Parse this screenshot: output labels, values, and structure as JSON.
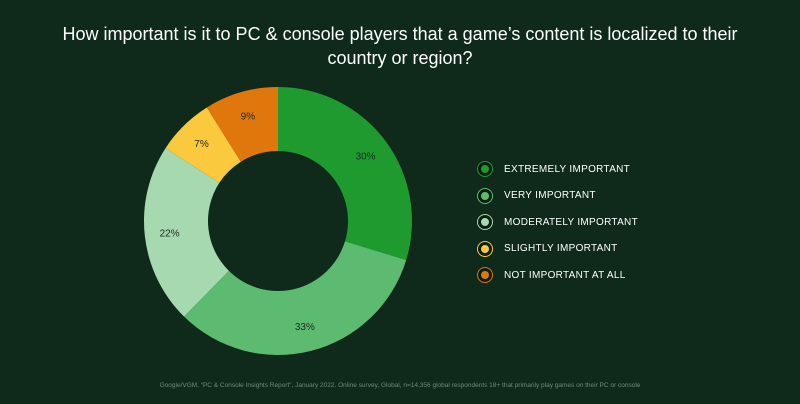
{
  "chart_data": {
    "type": "pie",
    "title": "How important is it to PC & console players that a game’s content is localized to their country or region?",
    "categories": [
      "EXTREMELY IMPORTANT",
      "VERY IMPORTANT",
      "MODERATELY IMPORTANT",
      "SLIGHTLY IMPORTANT",
      "NOT IMPORTANT AT ALL"
    ],
    "values": [
      30,
      33,
      22,
      7,
      9
    ],
    "value_labels": [
      "30%",
      "33%",
      "22%",
      "7%",
      "9%"
    ],
    "colors": [
      "#1e9a2f",
      "#5dbb71",
      "#a7d9b0",
      "#fbc93e",
      "#e0770d"
    ],
    "donut": true,
    "legend_position": "right"
  },
  "footer": {
    "source": "Google/VGM, “PC & Console Insights Report”, January 2022. Online survey, Global, n=14,356 global respondents 18+ that primarily play games on their PC or console"
  },
  "background_color": "#0f2a1b"
}
